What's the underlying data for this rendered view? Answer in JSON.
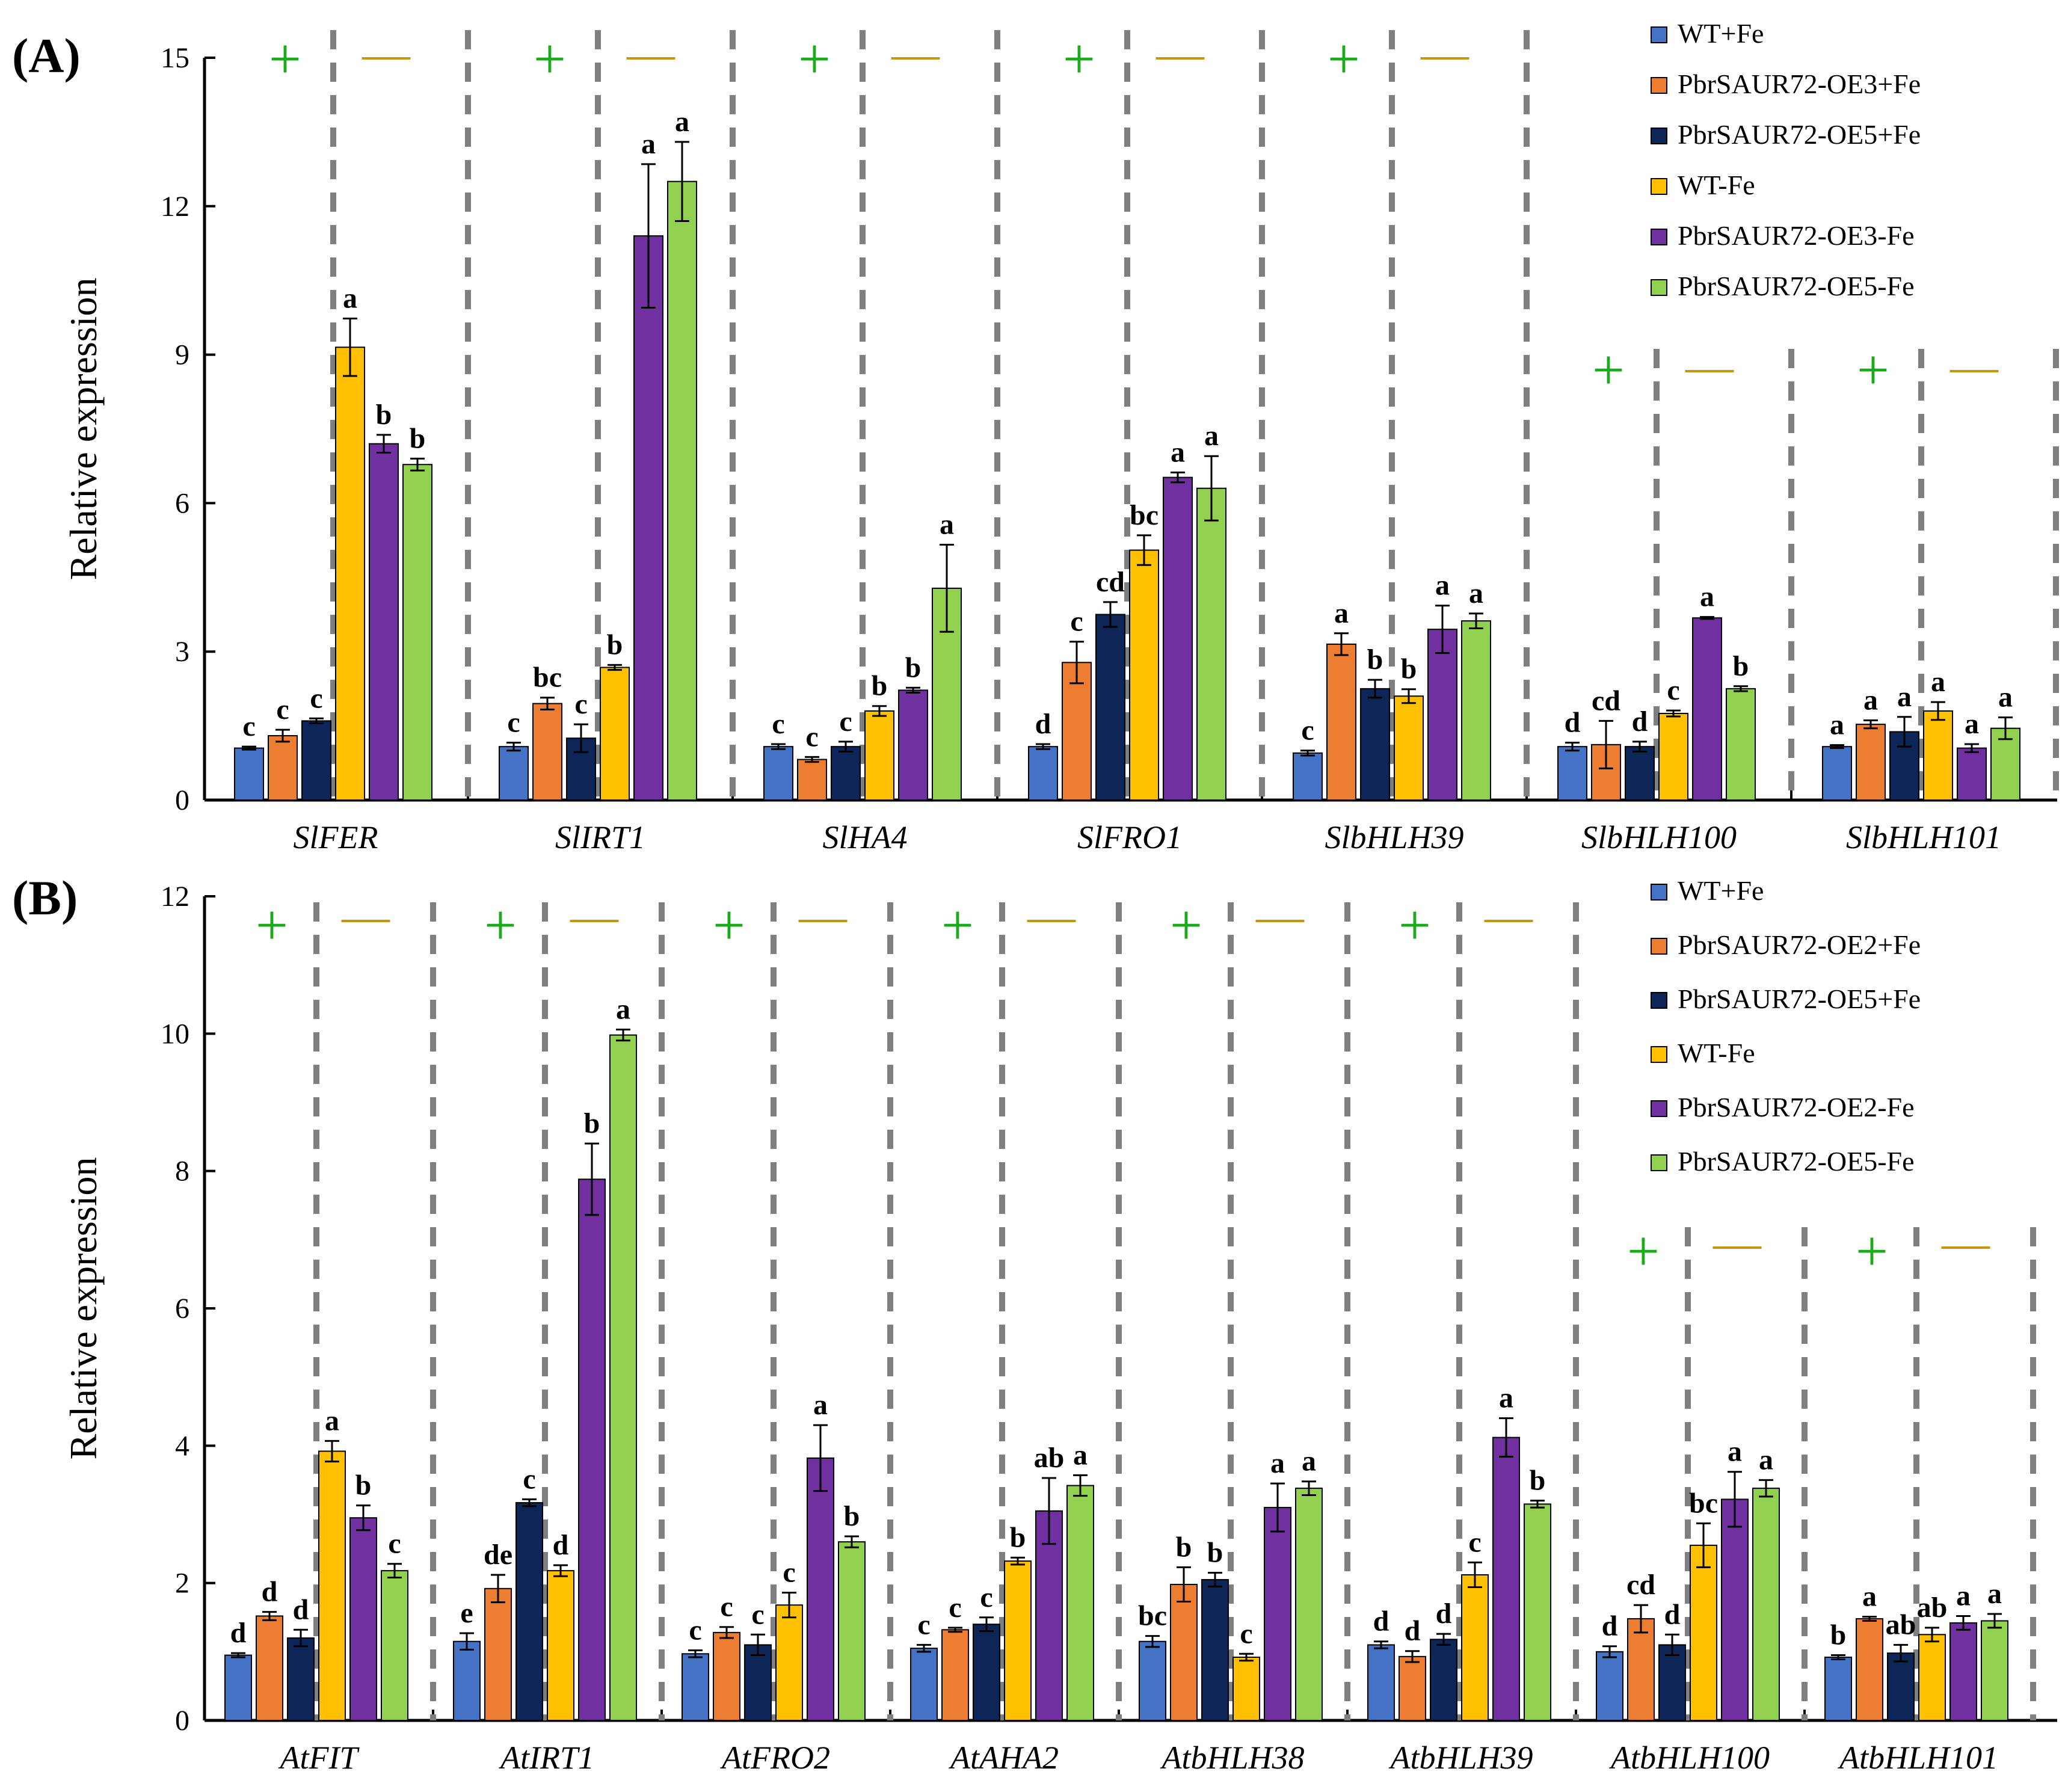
{
  "chart_data": [
    {
      "type": "bar",
      "panel": "(A)",
      "ylabel": "Relative expression",
      "ylim": [
        0,
        15
      ],
      "yticks": [
        0,
        3,
        6,
        9,
        12,
        15
      ],
      "categories": [
        "SlFER",
        "SlIRT1",
        "SlHA4",
        "SlFRO1",
        "SlbHLH39",
        "SlbHLH100",
        "SlbHLH101"
      ],
      "series": [
        {
          "name": "WT+Fe",
          "color": "#4472C4",
          "values": [
            1.05,
            1.08,
            1.08,
            1.08,
            0.95,
            1.08,
            1.08
          ],
          "errors": [
            0.03,
            0.08,
            0.05,
            0.05,
            0.05,
            0.08,
            0.03
          ],
          "letters": [
            "c",
            "c",
            "c",
            "d",
            "c",
            "d",
            "a"
          ]
        },
        {
          "name": "PbrSAUR72-OE3+Fe",
          "color": "#ED7D31",
          "values": [
            1.3,
            1.95,
            0.82,
            2.78,
            3.15,
            1.12,
            1.53
          ],
          "errors": [
            0.12,
            0.12,
            0.05,
            0.42,
            0.22,
            0.48,
            0.08
          ],
          "letters": [
            "c",
            "bc",
            "c",
            "c",
            "a",
            "cd",
            "a"
          ]
        },
        {
          "name": "PbrSAUR72-OE5+Fe",
          "color": "#0E2557",
          "values": [
            1.6,
            1.25,
            1.08,
            3.75,
            2.25,
            1.08,
            1.38
          ],
          "errors": [
            0.05,
            0.28,
            0.1,
            0.25,
            0.18,
            0.1,
            0.3
          ],
          "letters": [
            "c",
            "c",
            "c",
            "cd",
            "b",
            "d",
            "a"
          ]
        },
        {
          "name": "WT-Fe",
          "color": "#FFC000",
          "values": [
            9.15,
            2.68,
            1.8,
            5.05,
            2.1,
            1.75,
            1.8
          ],
          "errors": [
            0.58,
            0.05,
            0.1,
            0.3,
            0.14,
            0.06,
            0.18
          ],
          "letters": [
            "a",
            "b",
            "b",
            "bc",
            "b",
            "c",
            "a"
          ]
        },
        {
          "name": "PbrSAUR72-OE3-Fe",
          "color": "#7030A0",
          "values": [
            7.2,
            11.4,
            2.22,
            6.52,
            3.45,
            3.68,
            1.05
          ],
          "errors": [
            0.18,
            1.45,
            0.05,
            0.1,
            0.48,
            0.02,
            0.08
          ],
          "letters": [
            "b",
            "a",
            "b",
            "a",
            "a",
            "a",
            "a"
          ]
        },
        {
          "name": "PbrSAUR72-OE5-Fe",
          "color": "#92D050",
          "values": [
            6.78,
            12.5,
            4.28,
            6.3,
            3.62,
            2.25,
            1.45
          ],
          "errors": [
            0.12,
            0.8,
            0.88,
            0.65,
            0.15,
            0.05,
            0.22
          ],
          "letters": [
            "b",
            "a",
            "a",
            "a",
            "a",
            "b",
            "a"
          ]
        }
      ],
      "treatment_marks": {
        "plus": "+",
        "minus": "—"
      },
      "legend_position": "top-right"
    },
    {
      "type": "bar",
      "panel": "(B)",
      "ylabel": "Relative expression",
      "ylim": [
        0,
        12
      ],
      "yticks": [
        0,
        2,
        4,
        6,
        8,
        10,
        12
      ],
      "categories": [
        "AtFIT",
        "AtIRT1",
        "AtFRO2",
        "AtAHA2",
        "AtbHLH38",
        "AtbHLH39",
        "AtbHLH100",
        "AtbHLH101"
      ],
      "series": [
        {
          "name": "WT+Fe",
          "color": "#4472C4",
          "values": [
            0.95,
            1.15,
            0.97,
            1.05,
            1.15,
            1.1,
            1.0,
            0.92
          ],
          "errors": [
            0.03,
            0.12,
            0.05,
            0.05,
            0.08,
            0.05,
            0.08,
            0.03
          ],
          "letters": [
            "d",
            "e",
            "c",
            "c",
            "bc",
            "d",
            "d",
            "b"
          ]
        },
        {
          "name": "PbrSAUR72-OE2+Fe",
          "color": "#ED7D31",
          "values": [
            1.52,
            1.92,
            1.28,
            1.32,
            1.98,
            0.93,
            1.48,
            1.48
          ],
          "errors": [
            0.06,
            0.2,
            0.08,
            0.03,
            0.25,
            0.08,
            0.2,
            0.03
          ],
          "letters": [
            "d",
            "de",
            "c",
            "c",
            "b",
            "d",
            "cd",
            "a"
          ]
        },
        {
          "name": "PbrSAUR72-OE5+Fe",
          "color": "#0E2557",
          "values": [
            1.2,
            3.17,
            1.1,
            1.4,
            2.05,
            1.18,
            1.1,
            0.98
          ],
          "errors": [
            0.12,
            0.05,
            0.15,
            0.1,
            0.1,
            0.08,
            0.15,
            0.12
          ],
          "letters": [
            "d",
            "c",
            "c",
            "c",
            "b",
            "d",
            "d",
            "ab"
          ]
        },
        {
          "name": "WT-Fe",
          "color": "#FFC000",
          "values": [
            3.92,
            2.18,
            1.68,
            2.32,
            0.92,
            2.12,
            2.55,
            1.25
          ],
          "errors": [
            0.15,
            0.08,
            0.18,
            0.05,
            0.05,
            0.18,
            0.32,
            0.1
          ],
          "letters": [
            "a",
            "d",
            "c",
            "b",
            "c",
            "c",
            "bc",
            "ab"
          ]
        },
        {
          "name": "PbrSAUR72-OE2-Fe",
          "color": "#7030A0",
          "values": [
            2.95,
            7.88,
            3.82,
            3.05,
            3.1,
            4.12,
            3.22,
            1.42
          ],
          "errors": [
            0.18,
            0.52,
            0.48,
            0.48,
            0.35,
            0.28,
            0.4,
            0.1
          ],
          "letters": [
            "b",
            "b",
            "a",
            "ab",
            "a",
            "a",
            "a",
            "a"
          ]
        },
        {
          "name": "PbrSAUR72-OE5-Fe",
          "color": "#92D050",
          "values": [
            2.18,
            9.98,
            2.6,
            3.42,
            3.38,
            3.15,
            3.38,
            1.45
          ],
          "errors": [
            0.1,
            0.08,
            0.08,
            0.15,
            0.1,
            0.05,
            0.12,
            0.1
          ],
          "letters": [
            "c",
            "a",
            "b",
            "a",
            "a",
            "b",
            "a",
            "a"
          ]
        }
      ],
      "treatment_marks": {
        "plus": "+",
        "minus": "—"
      },
      "legend_position": "top-right"
    }
  ]
}
